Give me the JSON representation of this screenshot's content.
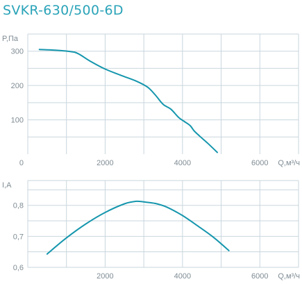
{
  "title": "SVKR-630/500-6D",
  "chart_data": [
    {
      "type": "line",
      "ylabel": "P,Па",
      "xlabel": "Q,м³/ч",
      "xlim": [
        0,
        7000
      ],
      "ylim": [
        0,
        350
      ],
      "xticks": [
        0,
        2000,
        4000,
        6000
      ],
      "xtick_labels": [
        "0",
        "2000",
        "4000",
        "6000"
      ],
      "yticks": [
        100,
        200,
        300
      ],
      "ytick_labels": [
        "100",
        "200",
        "300"
      ],
      "grid": true,
      "series": [
        {
          "x": [
            300,
            700,
            1100,
            1300,
            1600,
            2000,
            2400,
            2800,
            3100,
            3300,
            3500,
            3700,
            3900,
            4050,
            4200,
            4300,
            4450,
            4650,
            4900
          ],
          "values": [
            305,
            303,
            299,
            293,
            272,
            248,
            230,
            213,
            195,
            172,
            145,
            131,
            107,
            95,
            83,
            68,
            52,
            32,
            5
          ]
        }
      ]
    },
    {
      "type": "line",
      "ylabel": "I,A",
      "xlabel": "Q,м³/ч",
      "xlim": [
        0,
        7000
      ],
      "ylim": [
        0.6,
        0.88
      ],
      "xticks": [
        2000,
        4000,
        6000
      ],
      "xtick_labels": [
        "2000",
        "4000",
        "6000"
      ],
      "yticks": [
        0.6,
        0.7,
        0.8
      ],
      "ytick_labels": [
        "0,6",
        "0,7",
        "0,8"
      ],
      "grid": true,
      "series": [
        {
          "x": [
            500,
            1000,
            1500,
            2000,
            2500,
            2800,
            3000,
            3300,
            3600,
            4000,
            4400,
            4800,
            5200
          ],
          "values": [
            0.643,
            0.695,
            0.74,
            0.777,
            0.805,
            0.813,
            0.811,
            0.806,
            0.794,
            0.767,
            0.733,
            0.697,
            0.654
          ]
        }
      ]
    }
  ]
}
